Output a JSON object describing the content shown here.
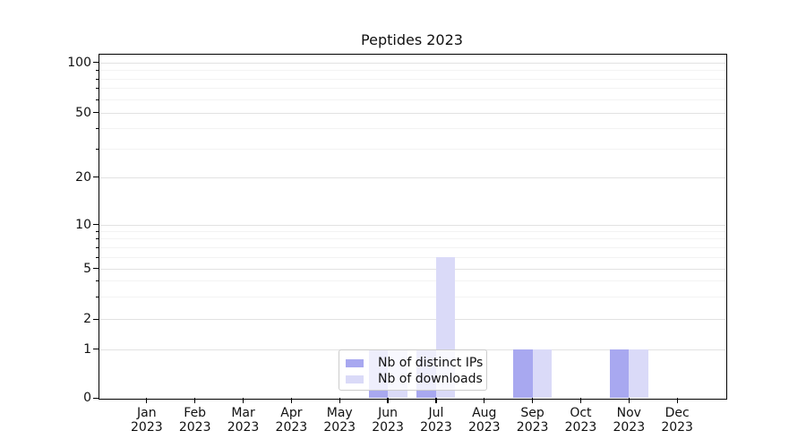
{
  "chart_data": {
    "type": "bar",
    "title": "Peptides 2023",
    "categories": [
      "Jan 2023",
      "Feb 2023",
      "Mar 2023",
      "Apr 2023",
      "May 2023",
      "Jun 2023",
      "Jul 2023",
      "Aug 2023",
      "Sep 2023",
      "Oct 2023",
      "Nov 2023",
      "Dec 2023"
    ],
    "series": [
      {
        "key": "distinct-ips",
        "name": "Nb of distinct IPs",
        "color": "#a8a8f0",
        "values": [
          0,
          0,
          0,
          0,
          0,
          1,
          1,
          0,
          1,
          0,
          1,
          0
        ]
      },
      {
        "key": "downloads",
        "name": "Nb of downloads",
        "color": "#dadaf8",
        "values": [
          0,
          0,
          0,
          0,
          0,
          1,
          6,
          0,
          1,
          0,
          1,
          0
        ]
      }
    ],
    "yscale": "symlog",
    "yticks": [
      0,
      1,
      2,
      5,
      10,
      20,
      50,
      100
    ],
    "yminorticks": [
      3,
      4,
      6,
      7,
      8,
      9,
      30,
      40,
      60,
      70,
      80,
      90
    ],
    "ylim": [
      0,
      120
    ],
    "xlabel": "",
    "ylabel": "",
    "grid": "horizontal",
    "legend_position": "lower center"
  }
}
